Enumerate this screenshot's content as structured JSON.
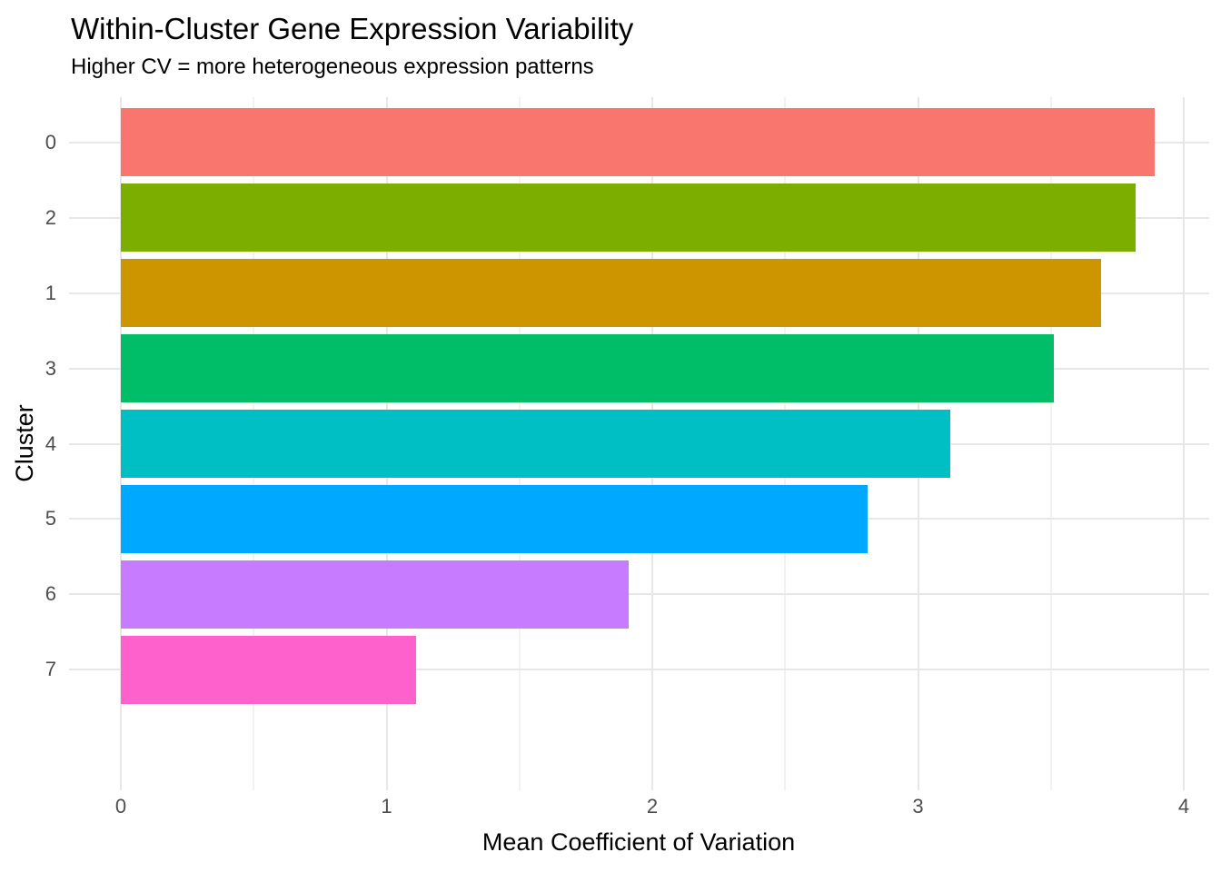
{
  "chart_data": {
    "type": "bar",
    "orientation": "horizontal",
    "title": "Within-Cluster Gene Expression Variability",
    "subtitle": "Higher CV = more heterogeneous expression patterns",
    "xlabel": "Mean Coefficient of Variation",
    "ylabel": "Cluster",
    "categories": [
      "0",
      "2",
      "1",
      "3",
      "4",
      "5",
      "6",
      "7"
    ],
    "values": [
      3.89,
      3.82,
      3.69,
      3.51,
      3.12,
      2.81,
      1.91,
      1.11
    ],
    "bar_colors": [
      "#F8766D",
      "#7CAE00",
      "#CD9600",
      "#00BE67",
      "#00BFC4",
      "#00A9FF",
      "#C77CFF",
      "#FF61CC"
    ],
    "x_ticks": [
      0,
      1,
      2,
      3,
      4
    ],
    "xlim": [
      0,
      4.09
    ],
    "bar_width_fraction": 0.9,
    "grid": {
      "major": true,
      "minor": true,
      "major_color": "#E7E7E7",
      "minor_color": "#F2F2F2"
    },
    "legend": "none",
    "background_color": "#FFFFFF",
    "tick_label_color": "#4D4D4D",
    "text_color": "#000000"
  }
}
